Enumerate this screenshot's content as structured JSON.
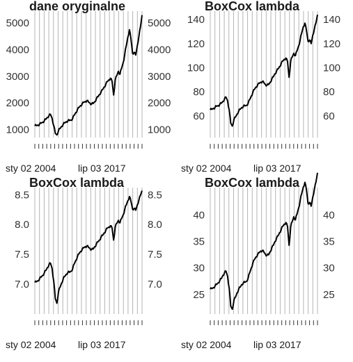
{
  "chart_data": [
    {
      "type": "line",
      "title": "dane oryginalne",
      "x_labels": [
        "sty 02 2004",
        "lip 03 2017"
      ],
      "ylim": [
        700,
        5450
      ],
      "yticks": [
        1000,
        2000,
        3000,
        4000,
        5000
      ],
      "ytick_labels": [
        "1000",
        "2000",
        "3000",
        "4000",
        "5000"
      ],
      "grid": true,
      "series": [
        {
          "values": [
            1140,
            1150,
            1170,
            1200,
            1240,
            1280,
            1330,
            1390,
            1460,
            1530,
            1560,
            1420,
            1150,
            860,
            800,
            960,
            1040,
            1120,
            1200,
            1250,
            1300,
            1330,
            1340,
            1360,
            1420,
            1540,
            1640,
            1740,
            1830,
            1900,
            1960,
            2020,
            2060,
            2080,
            2040,
            1990,
            1960,
            1980,
            2050,
            2150,
            2230,
            2320,
            2410,
            2500,
            2600,
            2700,
            2800,
            2870,
            2930,
            2810,
            2300,
            2860,
            3030,
            3190,
            3080,
            3300,
            3500,
            3820,
            4150,
            4470,
            4750,
            4400,
            3860,
            3900,
            3800,
            4150,
            4500,
            4850,
            5300
          ]
        }
      ]
    },
    {
      "type": "line",
      "title": "BoxCox lambda",
      "x_labels": [
        "sty 02 2004",
        "lip 03 2017"
      ],
      "ylim": [
        42,
        147
      ],
      "yticks": [
        60,
        80,
        100,
        120,
        140
      ],
      "ytick_labels": [
        "60",
        "80",
        "100",
        "120",
        "140"
      ],
      "grid": true,
      "series": [
        {
          "values": [
            65,
            65.5,
            66.3,
            67,
            68,
            68.5,
            69.5,
            70.5,
            72,
            74,
            75.5,
            72.5,
            65,
            54,
            51.5,
            57,
            59,
            61.5,
            64,
            65.5,
            67,
            68,
            68.3,
            68.8,
            70.5,
            73.5,
            76.5,
            79.5,
            82,
            84,
            85.5,
            87,
            88,
            88.5,
            87.5,
            86,
            85.5,
            86,
            88,
            90.5,
            92.5,
            95,
            97,
            99,
            101,
            103.5,
            105.5,
            107,
            108,
            105,
            92,
            105.5,
            109,
            112,
            110,
            114,
            118,
            123,
            129,
            134,
            137,
            131,
            122,
            123,
            120,
            127,
            132,
            137,
            144
          ]
        }
      ]
    },
    {
      "type": "line",
      "title": "BoxCox lambda",
      "x_labels": [
        "sty 02 2004",
        "lip 03 2017"
      ],
      "ylim": [
        6.5,
        8.62
      ],
      "yticks": [
        7.0,
        7.5,
        8.0,
        8.5
      ],
      "ytick_labels": [
        "7.0",
        "7.5",
        "8.0",
        "8.5"
      ],
      "grid": true,
      "series": [
        {
          "values": [
            7.03,
            7.04,
            7.06,
            7.09,
            7.12,
            7.15,
            7.19,
            7.23,
            7.28,
            7.33,
            7.35,
            7.26,
            7.05,
            6.76,
            6.68,
            6.87,
            6.95,
            7.02,
            7.09,
            7.13,
            7.17,
            7.2,
            7.2,
            7.22,
            7.26,
            7.34,
            7.4,
            7.46,
            7.51,
            7.55,
            7.58,
            7.61,
            7.63,
            7.64,
            7.62,
            7.6,
            7.58,
            7.59,
            7.63,
            7.67,
            7.71,
            7.74,
            7.79,
            7.82,
            7.86,
            7.9,
            7.94,
            7.96,
            7.98,
            7.94,
            7.74,
            7.96,
            8.02,
            8.07,
            8.03,
            8.1,
            8.16,
            8.25,
            8.33,
            8.4,
            8.47,
            8.39,
            8.26,
            8.27,
            8.24,
            8.33,
            8.41,
            8.49,
            8.57
          ]
        }
      ]
    },
    {
      "type": "line",
      "title": "BoxCox lambda",
      "x_labels": [
        "sty 02 2004",
        "lip 03 2017"
      ],
      "ylim": [
        21.3,
        45.2
      ],
      "yticks": [
        25,
        30,
        35,
        40
      ],
      "ytick_labels": [
        "25",
        "30",
        "35",
        "40"
      ],
      "grid": true,
      "series": [
        {
          "values": [
            26,
            26.1,
            26.3,
            26.6,
            26.9,
            27.2,
            27.6,
            28,
            28.6,
            29.1,
            29.4,
            28.4,
            26.2,
            22.8,
            22.2,
            23.9,
            24.5,
            25.3,
            26,
            26.4,
            26.9,
            27.2,
            27.3,
            27.5,
            28.1,
            29.1,
            30,
            30.9,
            31.6,
            32.1,
            32.5,
            32.9,
            33.2,
            33.3,
            33,
            32.6,
            32.4,
            32.5,
            33.1,
            33.8,
            34.3,
            35,
            35.6,
            36.1,
            36.7,
            37.3,
            37.9,
            38.3,
            38.6,
            37.8,
            34.3,
            37.8,
            38.8,
            39.7,
            39.1,
            40.2,
            41.3,
            42.7,
            44.1,
            45.3,
            46.2,
            44.8,
            42.2,
            42.4,
            41.7,
            43.4,
            44.8,
            46.2,
            48
          ]
        }
      ]
    }
  ]
}
